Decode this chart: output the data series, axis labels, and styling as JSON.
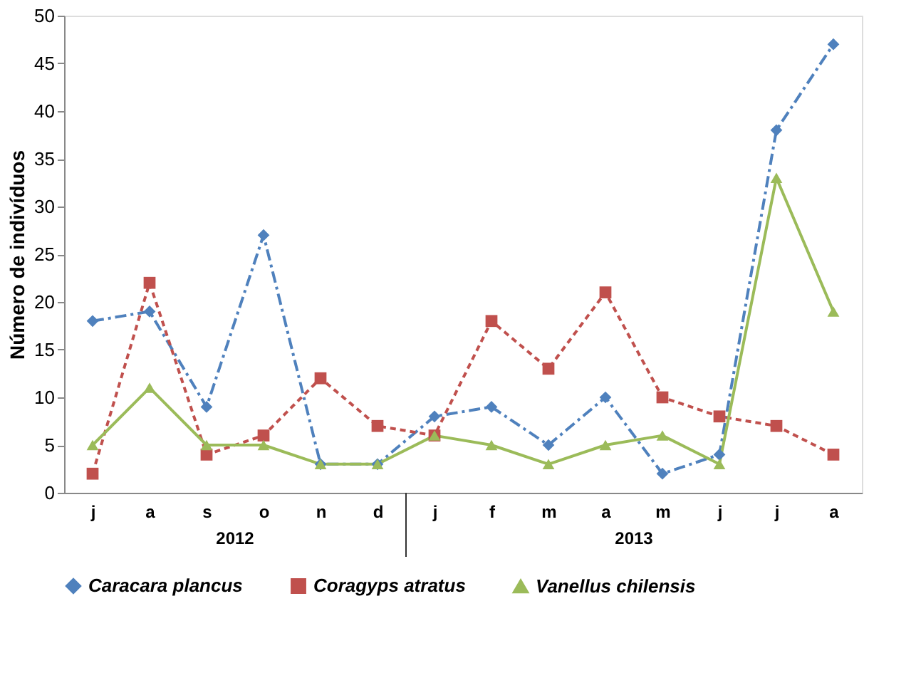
{
  "chart_data": {
    "type": "line",
    "ylabel": "Número de indivíduos",
    "categories": [
      "j",
      "a",
      "s",
      "o",
      "n",
      "d",
      "j",
      "f",
      "m",
      "a",
      "m",
      "j",
      "j",
      "a"
    ],
    "series": [
      {
        "name": "Caracara plancus",
        "color": "#4f81bd",
        "marker": "diamond",
        "line_style": "dashdot",
        "values": [
          18,
          19,
          9,
          27,
          3,
          3,
          8,
          9,
          5,
          10,
          2,
          4,
          38,
          47
        ]
      },
      {
        "name": "Coragyps atratus",
        "color": "#c0504d",
        "marker": "square",
        "line_style": "dashed",
        "values": [
          2,
          22,
          4,
          6,
          12,
          7,
          6,
          18,
          13,
          21,
          10,
          8,
          7,
          4
        ]
      },
      {
        "name": "Vanellus chilensis",
        "color": "#9bbb59",
        "marker": "triangle",
        "line_style": "solid",
        "values": [
          5,
          11,
          5,
          5,
          3,
          3,
          6,
          5,
          3,
          5,
          6,
          3,
          33,
          19
        ]
      }
    ],
    "ylim": [
      0,
      50
    ],
    "yticks": [
      0,
      5,
      10,
      15,
      20,
      25,
      30,
      35,
      40,
      45,
      50
    ],
    "annotations": [
      "2012",
      "2013"
    ],
    "grid": false,
    "legend": "bottom"
  }
}
